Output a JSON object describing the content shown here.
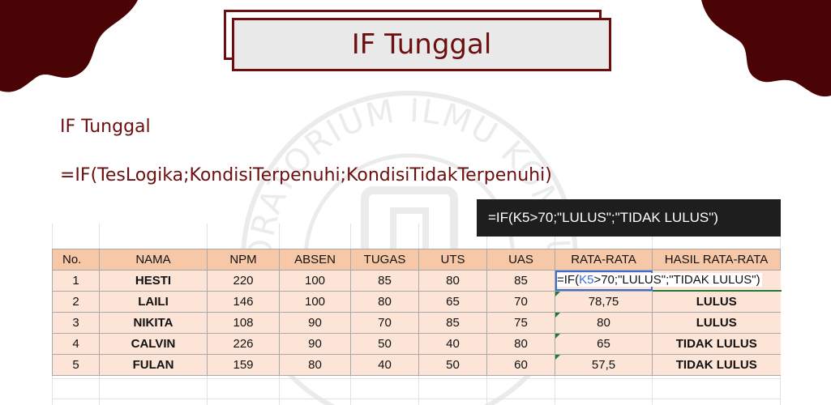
{
  "title": "IF Tunggal",
  "subtitle": "IF Tunggal",
  "syntax": "=IF(TesLogika;KondisiTerpenuhi;KondisiTidakTerpenuhi)",
  "formula_bar": "=IF(K5>70;\"LULUS\";\"TIDAK LULUS\")",
  "editing_formula": {
    "prefix": "=IF(",
    "ref": "K5",
    "suffix": ">70;\"LULUS\";\"TIDAK LULUS\")"
  },
  "watermark_text": "LABORATORIUM ILMU KOMPUTER",
  "colors": {
    "maroon": "#6b0f0f",
    "header_fill": "#f7c8a8",
    "row_fill": "#fce4d6",
    "ref_blue": "#3b6fd4"
  },
  "table": {
    "headers": {
      "no": "No.",
      "nama": "NAMA",
      "npm": "NPM",
      "absen": "ABSEN",
      "tugas": "TUGAS",
      "uts": "UTS",
      "uas": "UAS",
      "rata": "RATA-RATA",
      "hasil": "HASIL RATA-RATA"
    },
    "rows": [
      {
        "no": "1",
        "nama": "HESTI",
        "npm": "220",
        "absen": "100",
        "tugas": "85",
        "uts": "80",
        "uas": "85",
        "rata": "",
        "hasil": ""
      },
      {
        "no": "2",
        "nama": "LAILI",
        "npm": "146",
        "absen": "100",
        "tugas": "80",
        "uts": "65",
        "uas": "70",
        "rata": "78,75",
        "hasil": "LULUS"
      },
      {
        "no": "3",
        "nama": "NIKITA",
        "npm": "108",
        "absen": "90",
        "tugas": "70",
        "uts": "85",
        "uas": "75",
        "rata": "80",
        "hasil": "LULUS"
      },
      {
        "no": "4",
        "nama": "CALVIN",
        "npm": "226",
        "absen": "90",
        "tugas": "50",
        "uts": "40",
        "uas": "80",
        "rata": "65",
        "hasil": "TIDAK LULUS"
      },
      {
        "no": "5",
        "nama": "FULAN",
        "npm": "159",
        "absen": "80",
        "tugas": "40",
        "uts": "50",
        "uas": "60",
        "rata": "57,5",
        "hasil": "TIDAK LULUS"
      }
    ]
  }
}
